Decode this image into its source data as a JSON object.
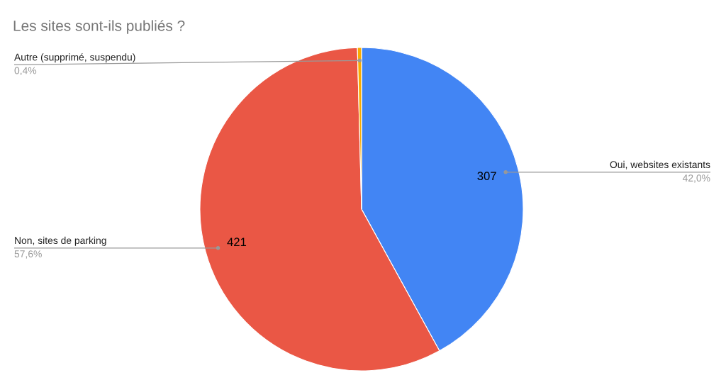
{
  "chart_data": {
    "type": "pie",
    "title": "Les sites sont-ils publiés ?",
    "categories": [
      "Oui, websites existants",
      "Non, sites de parking",
      "Autre (supprimé, suspendu)"
    ],
    "values": [
      307,
      421,
      3
    ],
    "colors": [
      "#4285f4",
      "#ea5745",
      "#f9ab00"
    ],
    "value_labels": [
      "307",
      "421",
      null
    ],
    "annotations": [
      "42,0%",
      "57,6%",
      "0,4%"
    ],
    "legend": false
  }
}
